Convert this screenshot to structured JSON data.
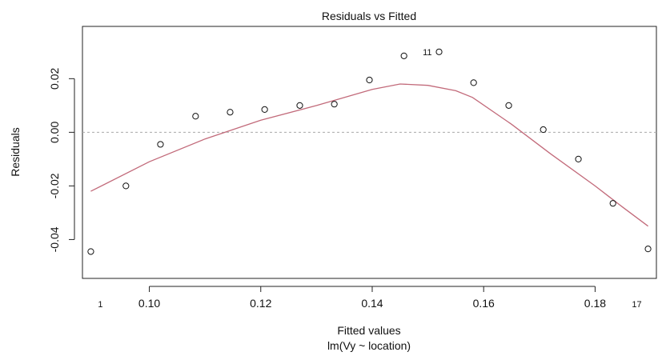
{
  "chart_data": {
    "type": "scatter",
    "title": "Residuals vs Fitted",
    "xlabel": "Fitted values",
    "sublabel": "lm(Vy ~ location)",
    "ylabel": "Residuals",
    "xlim": [
      0.088,
      0.191
    ],
    "ylim": [
      -0.0545,
      0.0395
    ],
    "x_ticks": [
      0.1,
      0.12,
      0.14,
      0.16,
      0.18
    ],
    "x_tick_labels": [
      "0.10",
      "0.12",
      "0.14",
      "0.16",
      "0.18"
    ],
    "y_ticks": [
      -0.04,
      -0.02,
      0.0,
      0.02
    ],
    "y_tick_labels": [
      "-0.04",
      "-0.02",
      "0.00",
      "0.02"
    ],
    "zero_line": 0.0,
    "grid": false,
    "points": [
      {
        "x": 0.0895,
        "y": -0.0445,
        "label": "1"
      },
      {
        "x": 0.0958,
        "y": -0.02
      },
      {
        "x": 0.102,
        "y": -0.0045
      },
      {
        "x": 0.1083,
        "y": 0.006
      },
      {
        "x": 0.1145,
        "y": 0.0075
      },
      {
        "x": 0.1207,
        "y": 0.0085
      },
      {
        "x": 0.127,
        "y": 0.01
      },
      {
        "x": 0.1332,
        "y": 0.0105
      },
      {
        "x": 0.1395,
        "y": 0.0195
      },
      {
        "x": 0.1457,
        "y": 0.0285
      },
      {
        "x": 0.152,
        "y": 0.03,
        "label": "11"
      },
      {
        "x": 0.1582,
        "y": 0.0185
      },
      {
        "x": 0.1645,
        "y": 0.01
      },
      {
        "x": 0.1707,
        "y": 0.001
      },
      {
        "x": 0.177,
        "y": -0.01
      },
      {
        "x": 0.1832,
        "y": -0.0265
      },
      {
        "x": 0.1895,
        "y": -0.0435,
        "label": "17"
      }
    ],
    "smooth_line": {
      "color": "#c26a7a",
      "x": [
        0.0895,
        0.1,
        0.11,
        0.12,
        0.13,
        0.14,
        0.145,
        0.15,
        0.155,
        0.158,
        0.165,
        0.172,
        0.18,
        0.185,
        0.1895
      ],
      "y": [
        -0.022,
        -0.011,
        -0.0025,
        0.0045,
        0.01,
        0.016,
        0.018,
        0.0175,
        0.0155,
        0.013,
        0.003,
        -0.008,
        -0.02,
        -0.028,
        -0.035
      ]
    }
  }
}
